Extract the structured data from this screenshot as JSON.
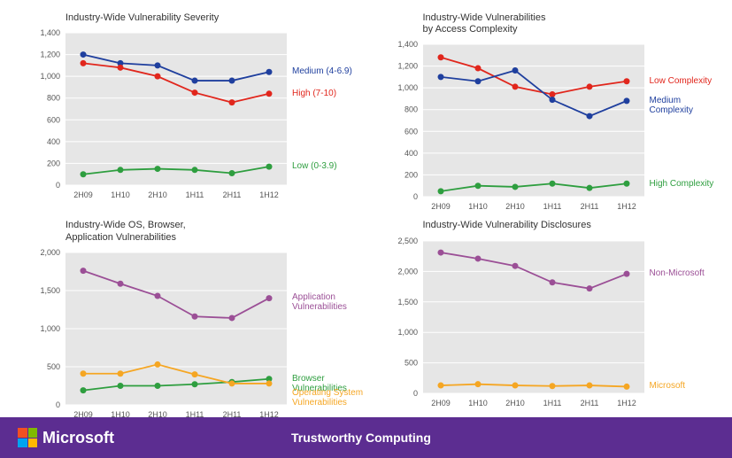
{
  "footer": {
    "brand": "Microsoft",
    "tagline": "Trustworthy Computing",
    "bg": "#5c2d91"
  },
  "categories": [
    "2H09",
    "1H10",
    "2H10",
    "1H11",
    "2H11",
    "1H12"
  ],
  "plot": {
    "bg": "#e6e6e6",
    "grid_color": "#ffffff",
    "axis_text": "#555555",
    "marker_r": 3.5,
    "line_w": 1.8,
    "title_fontsize": 11,
    "label_fontsize": 10
  },
  "colors": {
    "blue": "#1f3f9e",
    "red": "#e1261c",
    "green": "#2e9e3f",
    "purple": "#9b4f96",
    "orange": "#f5a623"
  },
  "charts": [
    {
      "key": "severity",
      "title": "Industry-Wide Vulnerability Severity",
      "ylim": [
        0,
        1400
      ],
      "ystep": 200,
      "series": [
        {
          "name": "Medium (4-6.9)",
          "colorKey": "blue",
          "values": [
            1200,
            1120,
            1100,
            960,
            960,
            1040
          ]
        },
        {
          "name": "High (7-10)",
          "colorKey": "red",
          "values": [
            1120,
            1080,
            1000,
            850,
            760,
            840
          ]
        },
        {
          "name": "Low (0-3.9)",
          "colorKey": "green",
          "values": [
            100,
            140,
            150,
            140,
            110,
            170
          ]
        }
      ]
    },
    {
      "key": "access",
      "title": "Industry-Wide Vulnerabilities\nby Access Complexity",
      "ylim": [
        0,
        1400
      ],
      "ystep": 200,
      "series": [
        {
          "name": "Low Complexity",
          "colorKey": "red",
          "values": [
            1280,
            1180,
            1010,
            940,
            1010,
            1060
          ]
        },
        {
          "name": "Medium Complexity",
          "colorKey": "blue",
          "values": [
            1100,
            1060,
            1160,
            890,
            740,
            880
          ]
        },
        {
          "name": "High Complexity",
          "colorKey": "green",
          "values": [
            50,
            100,
            90,
            120,
            80,
            120
          ]
        }
      ]
    },
    {
      "key": "osbrowser",
      "title": "Industry-Wide OS, Browser,\nApplication Vulnerabilities",
      "ylim": [
        0,
        2000
      ],
      "ystep": 500,
      "series": [
        {
          "name": "Application\nVulnerabilities",
          "colorKey": "purple",
          "values": [
            1760,
            1590,
            1430,
            1160,
            1140,
            1400
          ]
        },
        {
          "name": "Browser Vulnerabilities",
          "colorKey": "green",
          "values": [
            190,
            250,
            250,
            270,
            300,
            340
          ]
        },
        {
          "name": "Operating System\nVulnerabilities",
          "colorKey": "orange",
          "values": [
            410,
            410,
            530,
            400,
            280,
            280
          ]
        }
      ]
    },
    {
      "key": "disclosures",
      "title": "Industry-Wide Vulnerability Disclosures",
      "ylim": [
        0,
        2500
      ],
      "ystep": 500,
      "series": [
        {
          "name": "Non-Microsoft",
          "colorKey": "purple",
          "values": [
            2310,
            2210,
            2090,
            1820,
            1720,
            1960
          ]
        },
        {
          "name": "Microsoft",
          "colorKey": "orange",
          "values": [
            130,
            150,
            130,
            120,
            130,
            110
          ]
        }
      ]
    }
  ]
}
